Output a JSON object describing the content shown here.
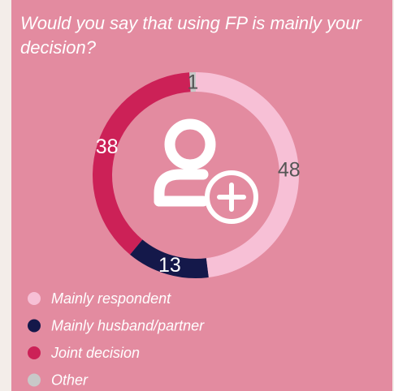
{
  "chart_data": {
    "type": "donut",
    "title": "Would you say that using FP is mainly your decision?",
    "categories": [
      "Mainly respondent",
      "Mainly husband/partner",
      "Joint decision",
      "Other"
    ],
    "values": [
      48,
      13,
      38,
      1
    ],
    "colors": [
      "#f7c0d6",
      "#14184a",
      "#cc2157",
      "#c8c8c8"
    ],
    "legend": "bottom-left"
  }
}
